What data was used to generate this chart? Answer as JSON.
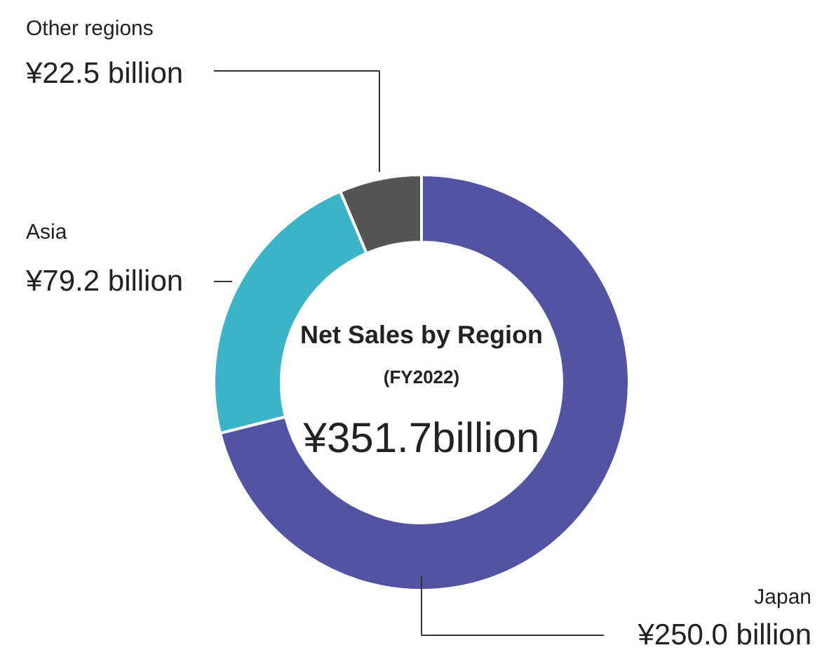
{
  "chart_data": {
    "type": "donut",
    "title": "Net Sales by Region",
    "subtitle": "(FY2022)",
    "annotations": [
      "¥351.7billion"
    ],
    "categories": [
      "Japan",
      "Asia",
      "Other regions"
    ],
    "values": [
      250.0,
      79.2,
      22.5
    ],
    "colors": [
      "#5352a3",
      "#3bb4c8",
      "#555555"
    ],
    "value_labels": [
      "¥250.0 billion",
      "¥79.2 billion",
      "¥22.5 billion"
    ]
  }
}
